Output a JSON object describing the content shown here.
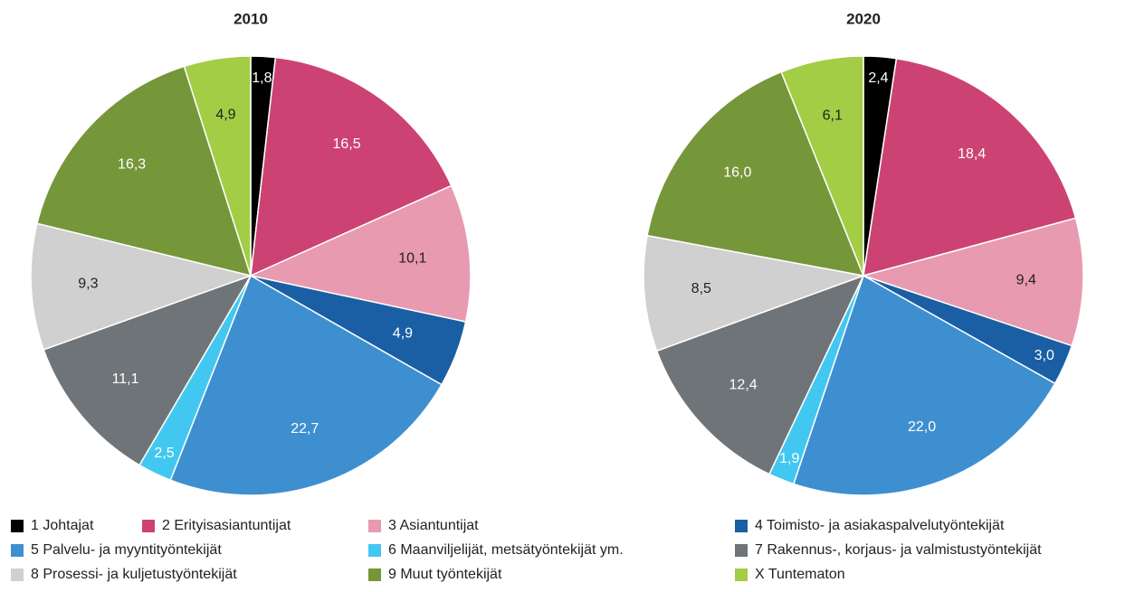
{
  "chart_data": [
    {
      "type": "pie",
      "title": "2010",
      "categories": [
        "1 Johtajat",
        "2 Erityisasiantuntijat",
        "3 Asiantuntijat",
        "4 Toimisto- ja asiakaspalvelutyöntekijät",
        "5 Palvelu- ja myyntityöntekijät",
        "6 Maanviljelijät, metsätyöntekijät ym.",
        "7 Rakennus-, korjaus- ja valmistustyöntekijät",
        "8 Prosessi- ja kuljetustyöntekijät",
        "9 Muut työntekijät",
        "X Tuntematon"
      ],
      "values": [
        1.8,
        16.5,
        10.1,
        4.9,
        22.7,
        2.5,
        11.1,
        9.3,
        16.3,
        4.9
      ],
      "value_labels": [
        "1,8",
        "16,5",
        "10,1",
        "4,9",
        "22,7",
        "2,5",
        "11,1",
        "9,3",
        "16,3",
        "4,9"
      ],
      "colors": [
        "#000000",
        "#cc4373",
        "#e89ab0",
        "#1a5fa3",
        "#3e8fd0",
        "#42c8f0",
        "#6f7478",
        "#d0d0d0",
        "#76963a",
        "#a3cd44"
      ]
    },
    {
      "type": "pie",
      "title": "2020",
      "categories": [
        "1 Johtajat",
        "2 Erityisasiantuntijat",
        "3 Asiantuntijat",
        "4 Toimisto- ja asiakaspalvelutyöntekijät",
        "5 Palvelu- ja myyntityöntekijät",
        "6 Maanviljelijät, metsätyöntekijät ym.",
        "7 Rakennus-, korjaus- ja valmistustyöntekijät",
        "8 Prosessi- ja kuljetustyöntekijät",
        "9 Muut työntekijät",
        "X Tuntematon"
      ],
      "values": [
        2.4,
        18.4,
        9.4,
        3.0,
        22.0,
        1.9,
        12.4,
        8.5,
        16.0,
        6.1
      ],
      "value_labels": [
        "2,4",
        "18,4",
        "9,4",
        "3,0",
        "22,0",
        "1,9",
        "12,4",
        "8,5",
        "16,0",
        "6,1"
      ],
      "colors": [
        "#000000",
        "#cc4373",
        "#e89ab0",
        "#1a5fa3",
        "#3e8fd0",
        "#42c8f0",
        "#6f7478",
        "#d0d0d0",
        "#76963a",
        "#a3cd44"
      ]
    }
  ]
}
